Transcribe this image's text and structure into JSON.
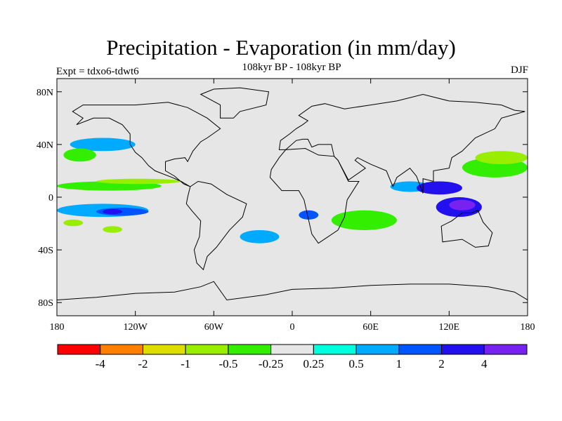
{
  "figure": {
    "title": "Precipitation - Evaporation (in mm/day)",
    "subtitle": "108kyr BP - 108kyr BP",
    "left_label": "Expt = tdxo6-tdwt6",
    "right_label": "DJF"
  },
  "map": {
    "projection": "cylindrical-equidistant",
    "lon_range": [
      -180,
      180
    ],
    "lat_range": [
      -90,
      90
    ],
    "background_color": "#e6e6e6",
    "lat_ticks": [
      {
        "lat": 80,
        "label": "80N"
      },
      {
        "lat": 40,
        "label": "40N"
      },
      {
        "lat": 0,
        "label": "0"
      },
      {
        "lat": -40,
        "label": "40S"
      },
      {
        "lat": -80,
        "label": "80S"
      }
    ],
    "lon_ticks": [
      {
        "lon": -180,
        "label": "180"
      },
      {
        "lon": -120,
        "label": "120W"
      },
      {
        "lon": -60,
        "label": "60W"
      },
      {
        "lon": 0,
        "label": "0"
      },
      {
        "lon": 60,
        "label": "60E"
      },
      {
        "lon": 120,
        "label": "120E"
      },
      {
        "lon": 180,
        "label": "180"
      }
    ]
  },
  "colorbar": {
    "colors": [
      "#ff0000",
      "#ff8000",
      "#dddd00",
      "#99ee00",
      "#33ee00",
      "#e6e6e6",
      "#00ffdd",
      "#00aaff",
      "#0055ff",
      "#2211ee",
      "#7722ee"
    ],
    "labels": [
      "-4",
      "-2",
      "-1",
      "-0.5",
      "-0.25",
      "0.25",
      "0.5",
      "1",
      "2",
      "4"
    ]
  },
  "chart_data": {
    "type": "heatmap",
    "title": "Precipitation - Evaporation (in mm/day)",
    "variable": "P-E difference",
    "units": "mm/day",
    "levels": [
      -4,
      -2,
      -1,
      -0.5,
      -0.25,
      0.25,
      0.5,
      1,
      2,
      4
    ],
    "approximate_regions": [
      {
        "lon": [
          -180,
          -100
        ],
        "lat": [
          5,
          12
        ],
        "level": -0.5
      },
      {
        "lon": [
          -150,
          -85
        ],
        "lat": [
          10,
          14
        ],
        "level": -1
      },
      {
        "lon": [
          -180,
          -110
        ],
        "lat": [
          -15,
          -5
        ],
        "level": 0.5
      },
      {
        "lon": [
          -150,
          -110
        ],
        "lat": [
          -14,
          -8
        ],
        "level": 1
      },
      {
        "lon": [
          -145,
          -130
        ],
        "lat": [
          -13,
          -9
        ],
        "level": 2
      },
      {
        "lon": [
          -175,
          -160
        ],
        "lat": [
          -22,
          -17
        ],
        "level": -1
      },
      {
        "lon": [
          -145,
          -130
        ],
        "lat": [
          -27,
          -22
        ],
        "level": -1
      },
      {
        "lon": [
          -170,
          -120
        ],
        "lat": [
          35,
          45
        ],
        "level": 0.5
      },
      {
        "lon": [
          -175,
          -150
        ],
        "lat": [
          27,
          37
        ],
        "level": -0.5
      },
      {
        "lon": [
          -40,
          -10
        ],
        "lat": [
          -35,
          -25
        ],
        "level": 0.5
      },
      {
        "lon": [
          5,
          20
        ],
        "lat": [
          -17,
          -10
        ],
        "level": 1
      },
      {
        "lon": [
          30,
          80
        ],
        "lat": [
          -25,
          -10
        ],
        "level": -0.5
      },
      {
        "lon": [
          75,
          105
        ],
        "lat": [
          4,
          12
        ],
        "level": 0.5
      },
      {
        "lon": [
          95,
          130
        ],
        "lat": [
          2,
          12
        ],
        "level": 2
      },
      {
        "lon": [
          110,
          145
        ],
        "lat": [
          -15,
          0
        ],
        "level": 2
      },
      {
        "lon": [
          120,
          140
        ],
        "lat": [
          -10,
          -2
        ],
        "level": 4
      },
      {
        "lon": [
          130,
          180
        ],
        "lat": [
          15,
          30
        ],
        "level": -0.5
      },
      {
        "lon": [
          140,
          180
        ],
        "lat": [
          25,
          35
        ],
        "level": -1
      }
    ]
  }
}
